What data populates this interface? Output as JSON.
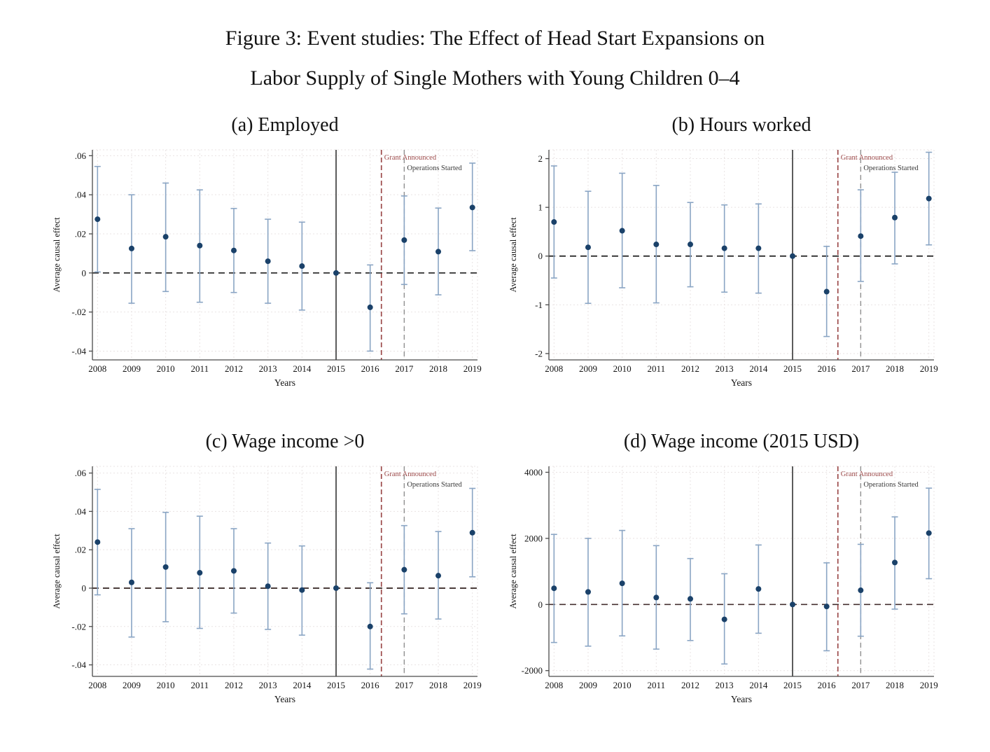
{
  "figure": {
    "title_line1": "Figure 3: Event studies: The Effect of Head Start Expansions on",
    "title_line2": "Labor Supply of Single Mothers with Young Children 0–4"
  },
  "colors": {
    "marker": "#1a4169",
    "ci": "#8aa5c4",
    "grid": "#e9e3e3",
    "axis": "#4a4a4a",
    "tick_text": "#141414",
    "treatment_line": "#161616",
    "grant_line": "#9c4a4a",
    "ops_line": "#909090",
    "ops_text": "#3b3b3b"
  },
  "annotations": {
    "grant": "Grant Announced",
    "ops": "Operations Started"
  },
  "chart_data": [
    {
      "type": "scatter",
      "subtitle": "(a) Employed",
      "xlabel": "Years",
      "ylabel": "Average causal effect",
      "x": [
        2008,
        2009,
        2010,
        2011,
        2012,
        2013,
        2014,
        2015,
        2016,
        2017,
        2018,
        2019
      ],
      "estimates": [
        0.0275,
        0.0125,
        0.0185,
        0.014,
        0.0115,
        0.006,
        0.0035,
        0.0,
        -0.0176,
        0.0168,
        0.0109,
        0.0335
      ],
      "ci_low": [
        0.0005,
        -0.0155,
        -0.0095,
        -0.015,
        -0.01,
        -0.0155,
        -0.019,
        0.0,
        -0.04,
        -0.0059,
        -0.0112,
        0.0114
      ],
      "ci_high": [
        0.0545,
        0.04,
        0.046,
        0.0425,
        0.033,
        0.0275,
        0.026,
        0.0,
        0.0041,
        0.0394,
        0.0332,
        0.0562
      ],
      "reference_year": 2015,
      "xlim": [
        2007.85,
        2019.15
      ],
      "ylim": [
        -0.0445,
        0.063
      ],
      "yticks": [
        -0.04,
        -0.02,
        0,
        0.02,
        0.04,
        0.06
      ],
      "ytick_labels": [
        "-.04",
        "-.02",
        "0",
        ".02",
        ".04",
        ".06"
      ],
      "vline_solid_x": 2015,
      "grant_announced_x": 2016.33,
      "operations_started_x": 2017,
      "zero_line_color": "#1f1f1f"
    },
    {
      "type": "scatter",
      "subtitle": "(b) Hours worked",
      "xlabel": "Years",
      "ylabel": "Average causal effect",
      "x": [
        2008,
        2009,
        2010,
        2011,
        2012,
        2013,
        2014,
        2015,
        2016,
        2017,
        2018,
        2019
      ],
      "estimates": [
        0.7,
        0.18,
        0.52,
        0.24,
        0.24,
        0.16,
        0.16,
        0.0,
        -0.73,
        0.41,
        0.79,
        1.18
      ],
      "ci_low": [
        -0.45,
        -0.97,
        -0.65,
        -0.96,
        -0.63,
        -0.74,
        -0.76,
        0.0,
        -1.65,
        -0.52,
        -0.16,
        0.23
      ],
      "ci_high": [
        1.85,
        1.33,
        1.7,
        1.45,
        1.1,
        1.05,
        1.07,
        0.0,
        0.2,
        1.36,
        1.72,
        2.13
      ],
      "reference_year": 2015,
      "xlim": [
        2007.85,
        2019.15
      ],
      "ylim": [
        -2.13,
        2.18
      ],
      "yticks": [
        -2,
        -1,
        0,
        1,
        2
      ],
      "ytick_labels": [
        "-2",
        "-1",
        "0",
        "1",
        "2"
      ],
      "vline_solid_x": 2015,
      "grant_announced_x": 2016.33,
      "operations_started_x": 2017,
      "zero_line_color": "#1f1f1f"
    },
    {
      "type": "scatter",
      "subtitle": "(c) Wage income >0",
      "xlabel": "Years",
      "ylabel": "Average causal effect",
      "x": [
        2008,
        2009,
        2010,
        2011,
        2012,
        2013,
        2014,
        2015,
        2016,
        2017,
        2018,
        2019
      ],
      "estimates": [
        0.024,
        0.003,
        0.011,
        0.008,
        0.009,
        0.001,
        -0.001,
        0.0,
        -0.02,
        0.0096,
        0.0065,
        0.0289
      ],
      "ci_low": [
        -0.0035,
        -0.0255,
        -0.0175,
        -0.021,
        -0.013,
        -0.0215,
        -0.0245,
        0.0,
        -0.0422,
        -0.0134,
        -0.0161,
        0.0059
      ],
      "ci_high": [
        0.0515,
        0.031,
        0.0395,
        0.0375,
        0.031,
        0.0235,
        0.022,
        0.0,
        0.0028,
        0.0326,
        0.0295,
        0.052
      ],
      "reference_year": 2015,
      "xlim": [
        2007.85,
        2019.15
      ],
      "ylim": [
        -0.046,
        0.0635
      ],
      "yticks": [
        -0.04,
        -0.02,
        0,
        0.02,
        0.04,
        0.06
      ],
      "ytick_labels": [
        "-.04",
        "-.02",
        "0",
        ".02",
        ".04",
        ".06"
      ],
      "vline_solid_x": 2015,
      "grant_announced_x": 2016.33,
      "operations_started_x": 2017,
      "zero_line_color": "#32201f"
    },
    {
      "type": "scatter",
      "subtitle": "(d) Wage income (2015 USD)",
      "xlabel": "Years",
      "ylabel": "Average causal effect",
      "x": [
        2008,
        2009,
        2010,
        2011,
        2012,
        2013,
        2014,
        2015,
        2016,
        2017,
        2018,
        2019
      ],
      "estimates": [
        490,
        380,
        640,
        210,
        170,
        -450,
        470,
        0,
        -60,
        430,
        1270,
        2160
      ],
      "ci_low": [
        -1150,
        -1260,
        -950,
        -1350,
        -1090,
        -1800,
        -870,
        0,
        -1400,
        -960,
        -140,
        780
      ],
      "ci_high": [
        2120,
        2000,
        2240,
        1780,
        1390,
        930,
        1800,
        0,
        1260,
        1820,
        2650,
        3520
      ],
      "reference_year": 2015,
      "xlim": [
        2007.85,
        2019.15
      ],
      "ylim": [
        -2175,
        4180
      ],
      "yticks": [
        -2000,
        0,
        2000,
        4000
      ],
      "ytick_labels": [
        "-2000",
        "0",
        "2000",
        "4000"
      ],
      "vline_solid_x": 2015,
      "grant_announced_x": 2016.33,
      "operations_started_x": 2017,
      "zero_line_color": "#453030"
    }
  ]
}
